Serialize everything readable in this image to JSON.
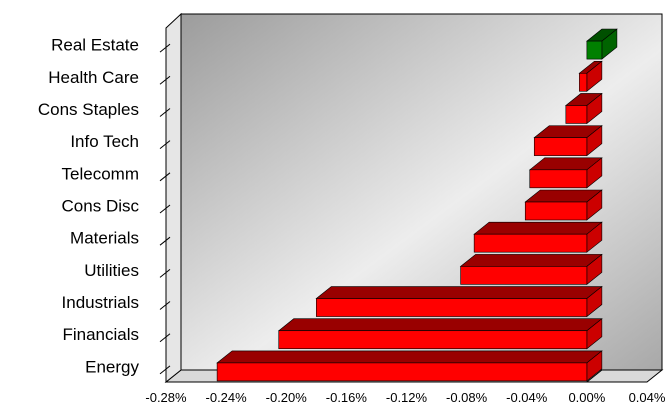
{
  "chart_data": {
    "type": "bar",
    "orientation": "horizontal",
    "style": "3d",
    "title": "",
    "xlabel": "",
    "ylabel": "",
    "categories": [
      "Real Estate",
      "Health Care",
      "Cons Staples",
      "Info Tech",
      "Telecomm",
      "Cons Disc",
      "Materials",
      "Utilities",
      "Industrials",
      "Financials",
      "Energy"
    ],
    "values": [
      0.01,
      -0.005,
      -0.014,
      -0.035,
      -0.038,
      -0.041,
      -0.075,
      -0.084,
      -0.18,
      -0.205,
      -0.246
    ],
    "value_unit": "%",
    "xlim": [
      -0.28,
      0.04
    ],
    "x_ticks": [
      "-0.28%",
      "-0.24%",
      "-0.20%",
      "-0.16%",
      "-0.12%",
      "-0.08%",
      "-0.04%",
      "0.00%",
      "0.04%"
    ],
    "colors": {
      "negative": "#ff0000",
      "negative_top": "#990000",
      "negative_side": "#cc0000",
      "positive": "#008000",
      "positive_top": "#005000",
      "positive_side": "#006400"
    },
    "grid": false,
    "legend": "none"
  }
}
